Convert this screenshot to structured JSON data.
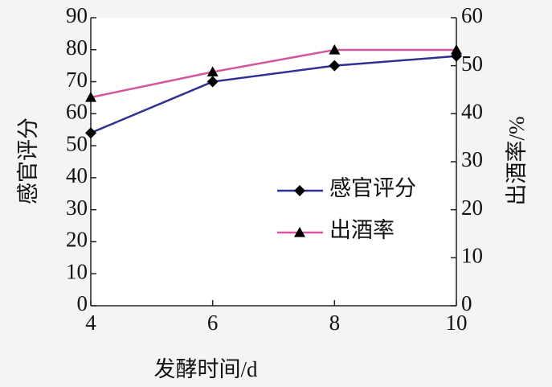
{
  "chart_data": {
    "type": "line",
    "x_label": "发酵时间/d",
    "y_label": "感官评分",
    "y2_label": "出酒率/%",
    "x": [
      4,
      6,
      8,
      10
    ],
    "xlim": [
      4,
      10
    ],
    "xticks": [
      4,
      6,
      8,
      10
    ],
    "ylim": [
      0,
      90
    ],
    "yticks": [
      0,
      10,
      20,
      30,
      40,
      50,
      60,
      70,
      80,
      90
    ],
    "y2lim": [
      0,
      60
    ],
    "y2ticks": [
      0,
      10,
      20,
      30,
      40,
      50,
      60
    ],
    "series": [
      {
        "name": "感官评分",
        "color": "#2e3192",
        "marker": "diamond",
        "values": [
          54,
          70,
          75,
          78
        ]
      },
      {
        "name": "出酒率",
        "color": "#d4559c",
        "marker": "triangle",
        "axis": "y2",
        "values": [
          43.4,
          48.7,
          53.3,
          53.3
        ]
      }
    ]
  }
}
